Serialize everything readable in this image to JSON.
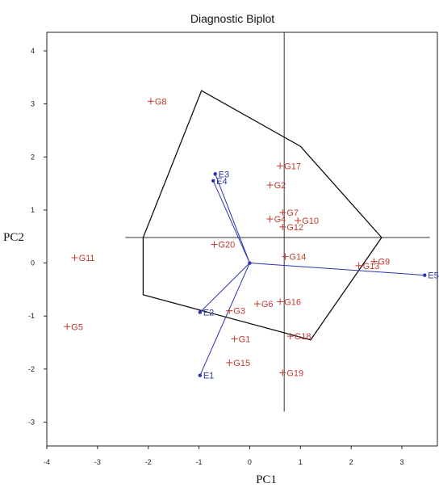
{
  "chart_data": {
    "type": "scatter",
    "title": "Diagnostic Biplot",
    "xlabel": "PC1",
    "ylabel": "PC2",
    "xlim": [
      -4,
      3.7
    ],
    "ylim": [
      -3.45,
      4.35
    ],
    "xticks": [
      -4,
      -3,
      -2,
      -1,
      0,
      1,
      2,
      3
    ],
    "yticks": [
      -3,
      -2,
      -1,
      0,
      1,
      2,
      3,
      4
    ],
    "genotype_color": "#c0392b",
    "environment_color": "#2c33b0",
    "hull_color": "#111111",
    "grid": false,
    "genotypes": [
      {
        "label": "G1",
        "x": -0.3,
        "y": -1.43
      },
      {
        "label": "G2",
        "x": 0.4,
        "y": 1.47
      },
      {
        "label": "G3",
        "x": -0.4,
        "y": -0.9
      },
      {
        "label": "G4",
        "x": 0.4,
        "y": 0.83
      },
      {
        "label": "G5",
        "x": -3.6,
        "y": -1.2
      },
      {
        "label": "G6",
        "x": 0.15,
        "y": -0.77
      },
      {
        "label": "G7",
        "x": 0.65,
        "y": 0.95
      },
      {
        "label": "G8",
        "x": -1.95,
        "y": 3.05
      },
      {
        "label": "G9",
        "x": 2.45,
        "y": 0.03
      },
      {
        "label": "G10",
        "x": 0.95,
        "y": 0.8
      },
      {
        "label": "G11",
        "x": -3.45,
        "y": 0.1
      },
      {
        "label": "G12",
        "x": 0.65,
        "y": 0.68
      },
      {
        "label": "G13",
        "x": 2.15,
        "y": -0.05
      },
      {
        "label": "G14",
        "x": 0.7,
        "y": 0.12
      },
      {
        "label": "G15",
        "x": -0.4,
        "y": -1.88
      },
      {
        "label": "G16",
        "x": 0.6,
        "y": -0.73
      },
      {
        "label": "G17",
        "x": 0.6,
        "y": 1.83
      },
      {
        "label": "G18",
        "x": 0.8,
        "y": -1.38
      },
      {
        "label": "G19",
        "x": 0.65,
        "y": -2.07
      },
      {
        "label": "G20",
        "x": -0.7,
        "y": 0.35
      }
    ],
    "environments": [
      {
        "label": "E1",
        "x": -0.98,
        "y": -2.12
      },
      {
        "label": "E2",
        "x": -0.98,
        "y": -0.93
      },
      {
        "label": "E3",
        "x": -0.68,
        "y": 1.68
      },
      {
        "label": "E4",
        "x": -0.72,
        "y": 1.55
      },
      {
        "label": "E5",
        "x": 3.45,
        "y": -0.23
      }
    ],
    "biplot_origin": {
      "x": 0,
      "y": 0
    },
    "hull": [
      {
        "x": -0.95,
        "y": 3.25
      },
      {
        "x": 1.0,
        "y": 2.2
      },
      {
        "x": 2.6,
        "y": 0.48
      },
      {
        "x": 1.2,
        "y": -1.45
      },
      {
        "x": -2.1,
        "y": -0.6
      },
      {
        "x": -2.1,
        "y": 0.48
      }
    ],
    "reference_lines": {
      "horizontal": {
        "y": 0.48,
        "x_from": -2.45,
        "x_to": 3.55
      },
      "vertical": {
        "x": 0.68,
        "y_from": -2.8,
        "y_to": 4.7
      }
    }
  }
}
